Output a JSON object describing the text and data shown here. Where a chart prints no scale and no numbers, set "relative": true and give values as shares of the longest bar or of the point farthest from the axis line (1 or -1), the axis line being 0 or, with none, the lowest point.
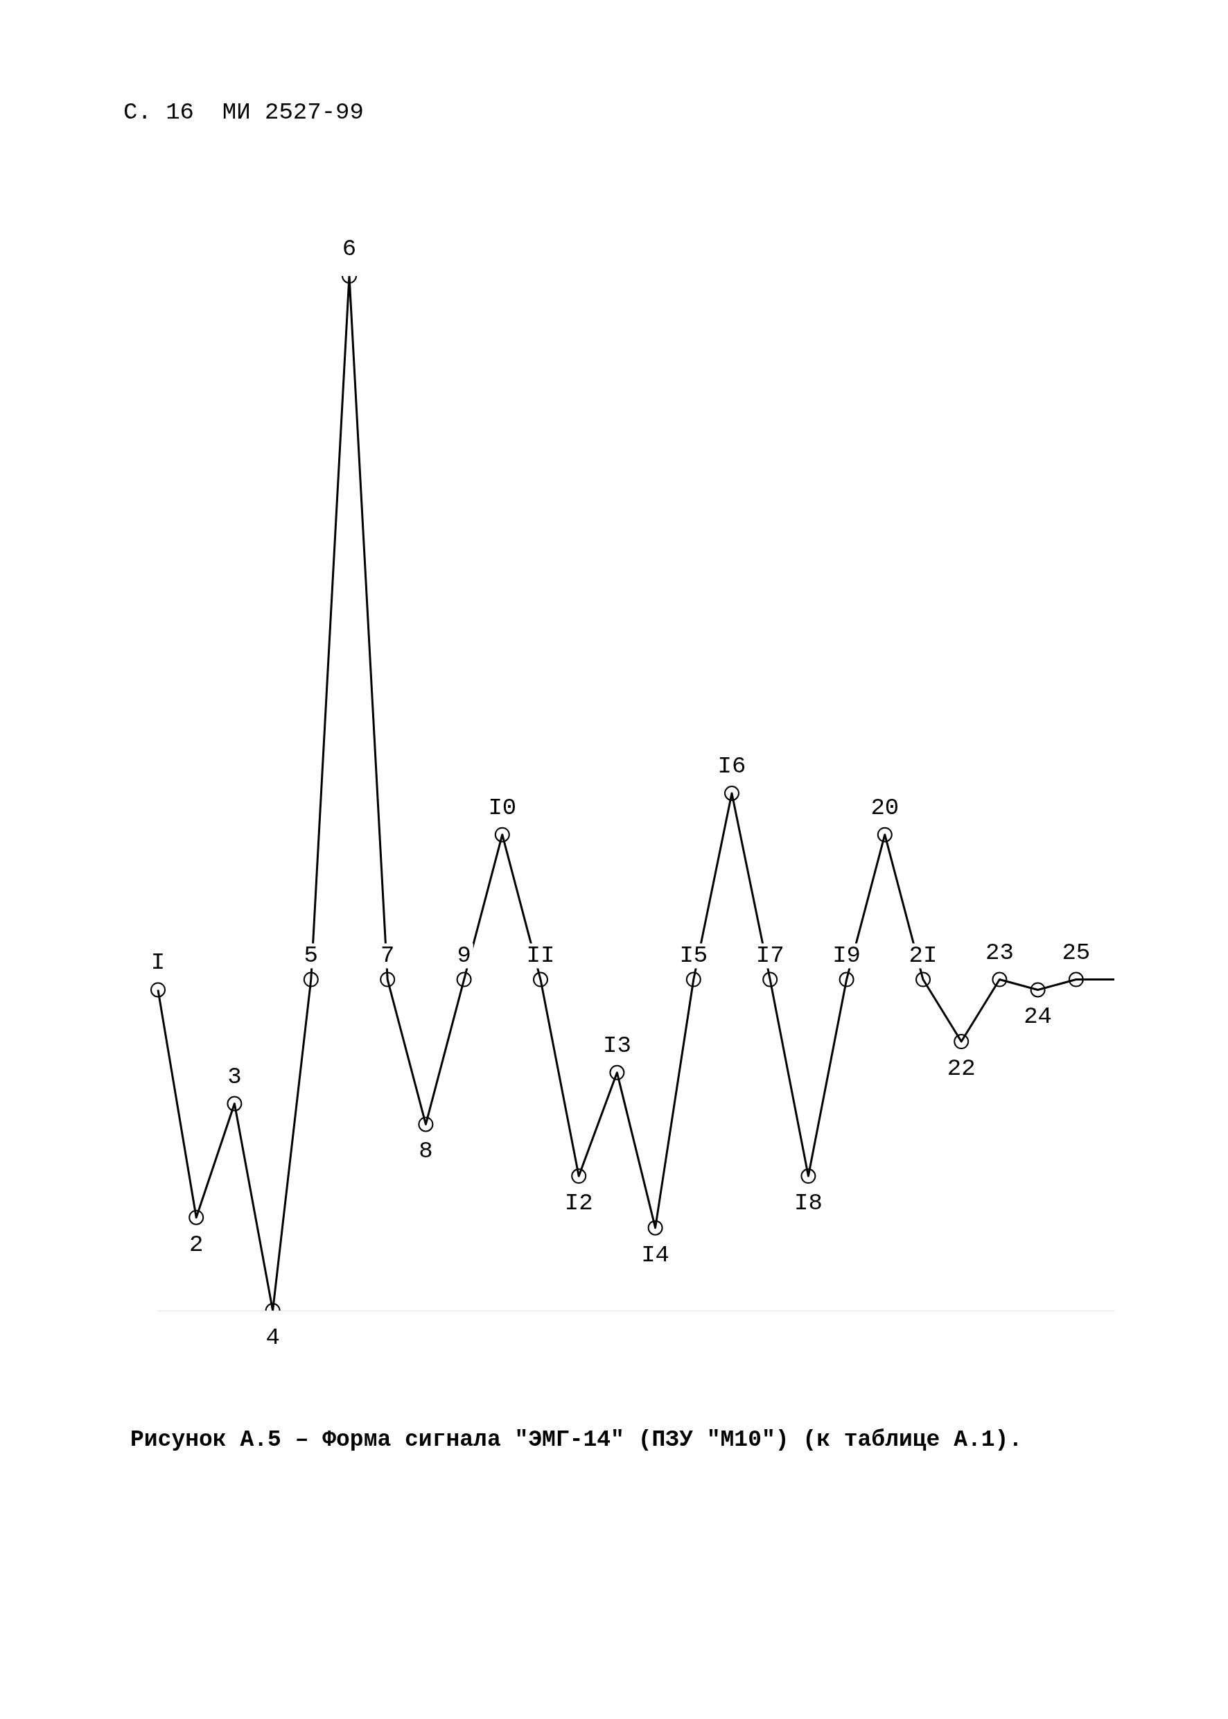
{
  "chart_data": {
    "type": "line",
    "title": "Рисунок А.5 – Форма сигнала \"ЭМГ-14\" (ПЗУ \"М10\") (к таблице А.1).",
    "relative": true,
    "color": "#000000",
    "marker": "circle",
    "line_style": "solid",
    "grid": false,
    "legend": false,
    "categories": [
      null,
      null,
      null,
      null,
      null,
      null,
      null,
      null,
      null,
      null,
      null,
      null,
      null,
      null,
      null,
      null,
      null,
      null,
      null,
      null,
      null,
      null,
      null,
      null,
      null,
      null
    ],
    "values": [
      0.31,
      0.09,
      0.2,
      0,
      0.32,
      1,
      0.32,
      0.18,
      0.32,
      0.46,
      0.32,
      0.13,
      0.23,
      0.08,
      0.32,
      0.5,
      0.32,
      0.13,
      0.32,
      0.46,
      0.32,
      0.26,
      0.32,
      0.31,
      0.32,
      0.32
    ],
    "annotations": [
      "С. 16  МИ 2527-99",
      {
        "text": "I",
        "y": 0.31
      },
      {
        "text": "2",
        "y": 0.09
      },
      {
        "text": "3",
        "y": 0.2
      },
      {
        "text": "4",
        "y": 0
      },
      {
        "text": "5",
        "y": 0.32
      },
      {
        "text": "6",
        "y": 1
      },
      {
        "text": "7",
        "y": 0.32
      },
      {
        "text": "8",
        "y": 0.18
      },
      {
        "text": "9",
        "y": 0.32
      },
      {
        "text": "I0",
        "y": 0.46
      },
      {
        "text": "II",
        "y": 0.32
      },
      {
        "text": "I2",
        "y": 0.13
      },
      {
        "text": "I3",
        "y": 0.23
      },
      {
        "text": "I4",
        "y": 0.08
      },
      {
        "text": "I5",
        "y": 0.32
      },
      {
        "text": "I6",
        "y": 0.5
      },
      {
        "text": "I7",
        "y": 0.32
      },
      {
        "text": "I8",
        "y": 0.13
      },
      {
        "text": "I9",
        "y": 0.32
      },
      {
        "text": "20",
        "y": 0.46
      },
      {
        "text": "2I",
        "y": 0.32
      },
      {
        "text": "22",
        "y": 0.26
      },
      {
        "text": "23",
        "y": 0.32
      },
      {
        "text": "24",
        "y": 0.31
      },
      {
        "text": "25",
        "y": 0.32
      }
    ]
  }
}
